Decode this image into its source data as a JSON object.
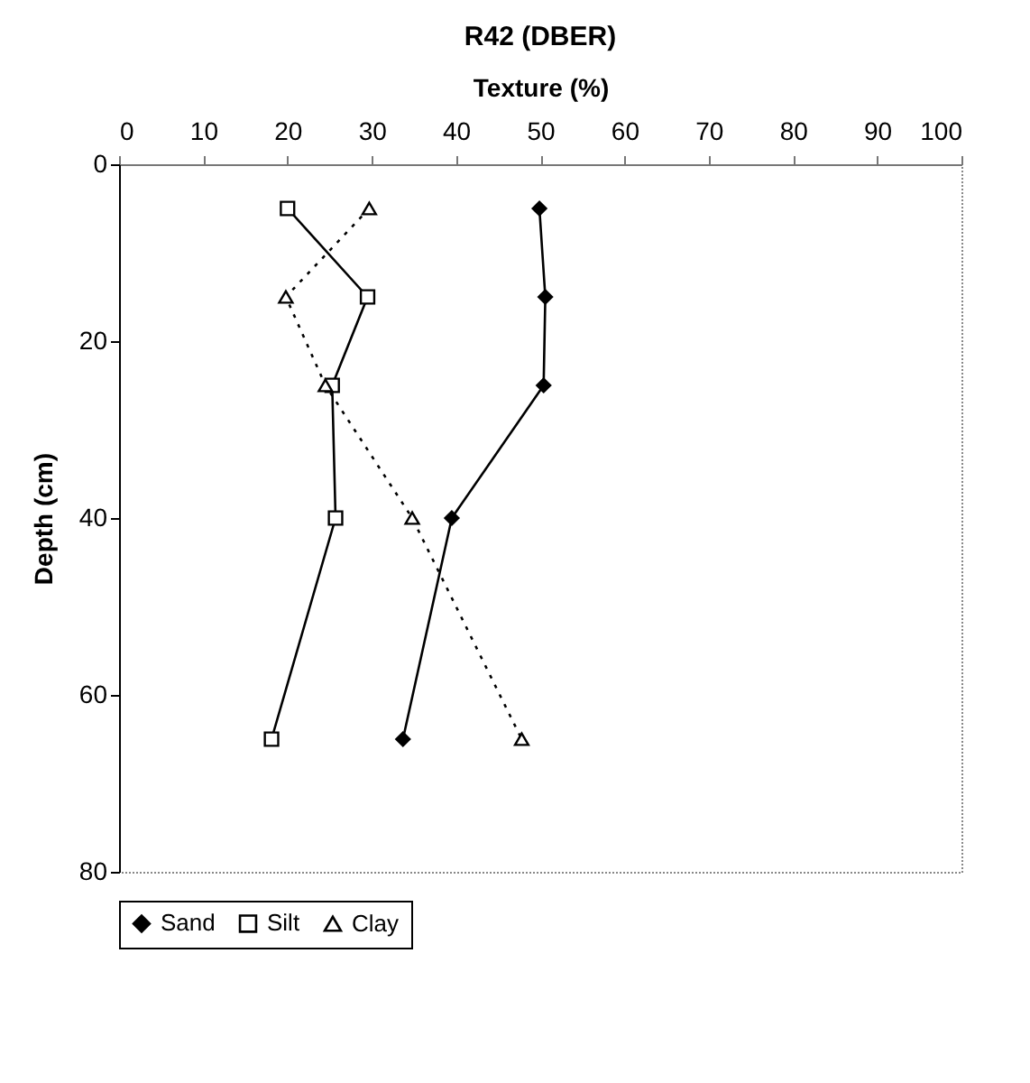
{
  "chart_data": {
    "type": "line",
    "title": "R42 (DBER)",
    "xlabel": "Texture (%)",
    "ylabel": "Depth (cm)",
    "xlim": [
      0,
      100
    ],
    "xticks": [
      0,
      10,
      20,
      30,
      40,
      50,
      60,
      70,
      80,
      90,
      100
    ],
    "ylim": [
      80,
      0
    ],
    "yticks": [
      0,
      20,
      40,
      60,
      80
    ],
    "legend": "bottom",
    "series": [
      {
        "name": "Sand",
        "color": "#000000",
        "marker": "diamond",
        "line_style": "solid",
        "x": [
          49.9,
          50.6,
          50.4,
          39.5,
          33.7
        ],
        "values": [
          5,
          15,
          25,
          40,
          65
        ]
      },
      {
        "name": "Silt",
        "color": "#000000",
        "marker": "square",
        "line_style": "solid",
        "x": [
          20,
          29.5,
          25.3,
          25.7,
          18.1
        ],
        "values": [
          5,
          15,
          25,
          40,
          65
        ]
      },
      {
        "name": "Clay",
        "color": "#000000",
        "marker": "triangle",
        "line_style": "dotted",
        "x": [
          29.7,
          19.8,
          24.5,
          34.8,
          47.8
        ],
        "values": [
          5,
          15,
          25,
          40,
          65
        ]
      }
    ]
  }
}
